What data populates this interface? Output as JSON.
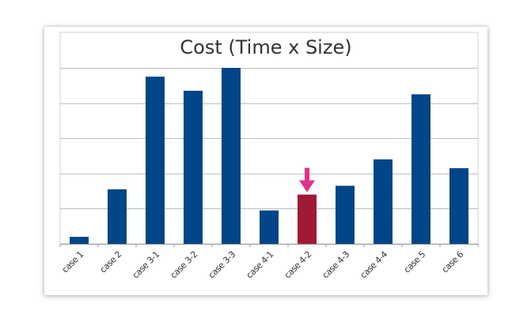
{
  "chart_data": {
    "type": "bar",
    "title": "Cost (Time x Size)",
    "xlabel": "",
    "ylabel": "",
    "categories": [
      "case 1",
      "case 2",
      "case 3-1",
      "case 3-2",
      "case 3-3",
      "case 4-1",
      "case 4-2",
      "case 4-3",
      "case 4-4",
      "case 5",
      "case 6"
    ],
    "values": [
      0.4,
      3.1,
      9.5,
      8.7,
      10.0,
      1.9,
      2.8,
      3.3,
      4.8,
      8.5,
      4.3
    ],
    "ylim": [
      0,
      10
    ],
    "grid": true,
    "legend": "none",
    "colors": {
      "bar": "#004587",
      "highlight": "#a01a35",
      "arrow": "#e0338a",
      "grid": "#bdbdbd"
    },
    "highlight_category": "case 4-2",
    "annotations": [
      {
        "type": "arrow",
        "target": "case 4-2",
        "icon": "down-arrow-icon"
      }
    ]
  }
}
